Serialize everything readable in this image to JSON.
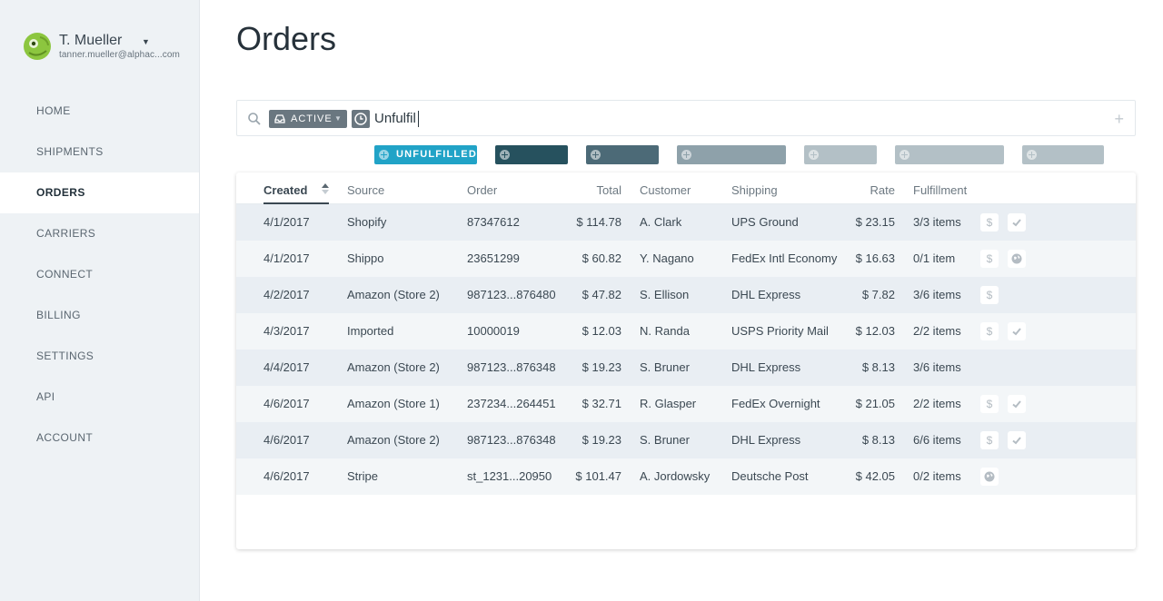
{
  "user": {
    "name": "T. Mueller",
    "caret": "▼",
    "email": "tanner.mueller@alphac...com"
  },
  "nav": [
    {
      "label": "HOME"
    },
    {
      "label": "SHIPMENTS"
    },
    {
      "label": "ORDERS",
      "active": true
    },
    {
      "label": "CARRIERS"
    },
    {
      "label": "CONNECT"
    },
    {
      "label": "BILLING"
    },
    {
      "label": "SETTINGS"
    },
    {
      "label": "API"
    },
    {
      "label": "ACCOUNT"
    }
  ],
  "page": {
    "title": "Orders"
  },
  "search": {
    "active_chip": "ACTIVE",
    "query": "Unfulfil"
  },
  "filters": [
    {
      "label": "UNFULFILLED",
      "color": "#21a3c7"
    },
    {
      "label": "",
      "color": "#26515e"
    },
    {
      "label": "",
      "color": "#4c6a77"
    },
    {
      "label": "",
      "color": "#8ea1aa"
    },
    {
      "label": "",
      "color": "#b3c0c6"
    },
    {
      "label": "",
      "color": "#b3c0c6"
    },
    {
      "label": "",
      "color": "#b3c0c6"
    }
  ],
  "table": {
    "columns": [
      "Created",
      "Source",
      "Order",
      "Total",
      "Customer",
      "Shipping",
      "Rate",
      "Fulfillment"
    ],
    "rows": [
      {
        "created": "4/1/2017",
        "source": "Shopify",
        "order": "87347612",
        "total": "$ 114.78",
        "customer": "A. Clark",
        "shipping": "UPS Ground",
        "rate": "$ 23.15",
        "fulfillment": "3/3 items",
        "icons": [
          "dollar-icon",
          "check-icon"
        ]
      },
      {
        "created": "4/1/2017",
        "source": "Shippo",
        "order": "23651299",
        "total": "$ 60.82",
        "customer": "Y. Nagano",
        "shipping": "FedEx Intl Economy",
        "rate": "$ 16.63",
        "fulfillment": "0/1 item",
        "icons": [
          "dollar-icon",
          "globe-icon"
        ]
      },
      {
        "created": "4/2/2017",
        "source": "Amazon (Store 2)",
        "order": "987123...876480",
        "total": "$ 47.82",
        "customer": "S. Ellison",
        "shipping": "DHL Express",
        "rate": "$ 7.82",
        "fulfillment": "3/6 items",
        "icons": [
          "dollar-icon"
        ]
      },
      {
        "created": "4/3/2017",
        "source": "Imported",
        "order": "10000019",
        "total": "$ 12.03",
        "customer": "N. Randa",
        "shipping": "USPS Priority Mail",
        "rate": "$ 12.03",
        "fulfillment": "2/2 items",
        "icons": [
          "dollar-icon",
          "check-icon"
        ]
      },
      {
        "created": "4/4/2017",
        "source": "Amazon (Store 2)",
        "order": "987123...876348",
        "total": "$ 19.23",
        "customer": "S. Bruner",
        "shipping": "DHL Express",
        "rate": "$ 8.13",
        "fulfillment": "3/6 items",
        "icons": []
      },
      {
        "created": "4/6/2017",
        "source": "Amazon (Store 1)",
        "order": "237234...264451",
        "total": "$ 32.71",
        "customer": "R. Glasper",
        "shipping": "FedEx Overnight",
        "rate": "$ 21.05",
        "fulfillment": "2/2 items",
        "icons": [
          "dollar-icon",
          "check-icon"
        ]
      },
      {
        "created": "4/6/2017",
        "source": "Amazon (Store 2)",
        "order": "987123...876348",
        "total": "$ 19.23",
        "customer": "S. Bruner",
        "shipping": "DHL Express",
        "rate": "$ 8.13",
        "fulfillment": "6/6 items",
        "icons": [
          "dollar-icon",
          "check-icon"
        ]
      },
      {
        "created": "4/6/2017",
        "source": "Stripe",
        "order": "st_1231...20950",
        "total": "$ 101.47",
        "customer": "A. Jordowsky",
        "shipping": "Deutsche Post",
        "rate": "$ 42.05",
        "fulfillment": "0/2 items",
        "icons": [
          "globe-icon"
        ]
      }
    ]
  },
  "icon_glyphs": {
    "dollar": "$"
  },
  "colors": {
    "accent": "#21a3c7",
    "sidebar_bg": "#eef2f5",
    "chip_grey": "#6a7780"
  }
}
